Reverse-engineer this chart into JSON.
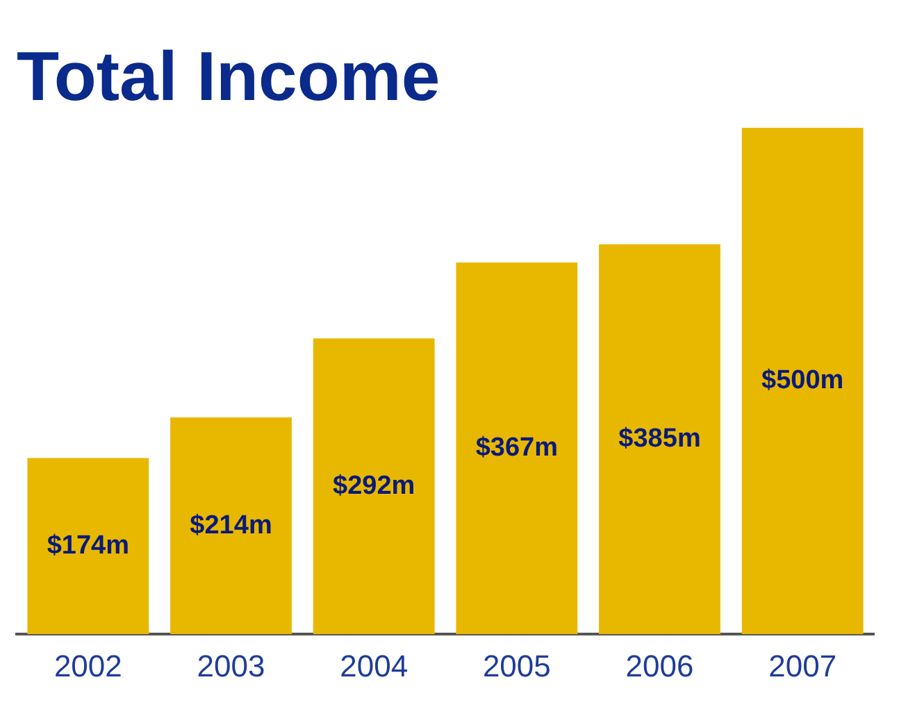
{
  "chart_data": {
    "type": "bar",
    "title": "Total Income",
    "categories": [
      "2002",
      "2003",
      "2004",
      "2005",
      "2006",
      "2007"
    ],
    "values": [
      174,
      214,
      292,
      367,
      385,
      500
    ],
    "color": "#e8b800",
    "value_labels": [
      "$174m",
      "$214m",
      "$292m",
      "$367m",
      "$385m",
      "$500m"
    ],
    "grid": false,
    "legend": false
  }
}
